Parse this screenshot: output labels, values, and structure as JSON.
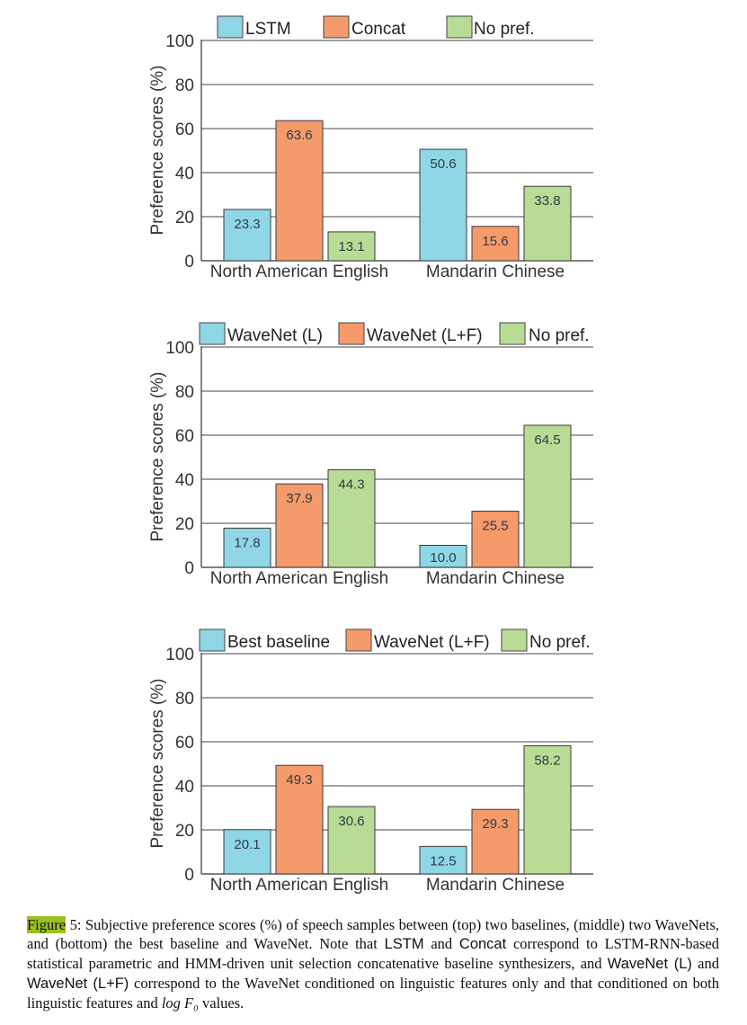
{
  "colors": {
    "cyan": "#8fd6e6",
    "orange": "#f59a6a",
    "green": "#b8dc95",
    "axis": "#333333",
    "grid": "#444444",
    "label": "#333333"
  },
  "chart_data": [
    {
      "type": "bar",
      "ylabel": "Preference scores (%)",
      "ylim": [
        0,
        100
      ],
      "yticks": [
        "0",
        "20",
        "40",
        "60",
        "80",
        "100"
      ],
      "categories": [
        "North American English",
        "Mandarin Chinese"
      ],
      "series": [
        {
          "name": "LSTM",
          "values": [
            23.3,
            50.6
          ],
          "value_labels": [
            "23.3",
            "50.6"
          ]
        },
        {
          "name": "Concat",
          "values": [
            63.6,
            15.6
          ],
          "value_labels": [
            "63.6",
            "15.6"
          ]
        },
        {
          "name": "No pref.",
          "values": [
            13.1,
            33.8
          ],
          "value_labels": [
            "13.1",
            "33.8"
          ]
        }
      ],
      "legend": "top"
    },
    {
      "type": "bar",
      "ylabel": "Preference scores (%)",
      "ylim": [
        0,
        100
      ],
      "yticks": [
        "0",
        "20",
        "40",
        "60",
        "80",
        "100"
      ],
      "categories": [
        "North American English",
        "Mandarin Chinese"
      ],
      "series": [
        {
          "name": "WaveNet (L)",
          "values": [
            17.8,
            10.0
          ],
          "value_labels": [
            "17.8",
            "10.0"
          ]
        },
        {
          "name": "WaveNet (L+F)",
          "values": [
            37.9,
            25.5
          ],
          "value_labels": [
            "37.9",
            "25.5"
          ]
        },
        {
          "name": "No pref.",
          "values": [
            44.3,
            64.5
          ],
          "value_labels": [
            "44.3",
            "64.5"
          ]
        }
      ],
      "legend": "top"
    },
    {
      "type": "bar",
      "ylabel": "Preference scores (%)",
      "ylim": [
        0,
        100
      ],
      "yticks": [
        "0",
        "20",
        "40",
        "60",
        "80",
        "100"
      ],
      "categories": [
        "North American English",
        "Mandarin Chinese"
      ],
      "series": [
        {
          "name": "Best baseline",
          "values": [
            20.1,
            12.5
          ],
          "value_labels": [
            "20.1",
            "12.5"
          ]
        },
        {
          "name": "WaveNet (L+F)",
          "values": [
            49.3,
            29.3
          ],
          "value_labels": [
            "49.3",
            "29.3"
          ]
        },
        {
          "name": "No pref.",
          "values": [
            30.6,
            58.2
          ],
          "value_labels": [
            "30.6",
            "58.2"
          ]
        }
      ],
      "legend": "top"
    }
  ],
  "caption": {
    "fig_word": "Figure",
    "fig_rest": " 5: Subjective preference scores (%) of speech samples between (top) two baselines, (middle) two WaveNets, and (bottom) the best baseline and WaveNet. Note that ",
    "lstm": "LSTM",
    "and1": " and ",
    "concat": "Concat",
    "mid": " correspond to LSTM-RNN-based statistical parametric and HMM-driven unit selection concatenative baseline synthesizers, and ",
    "wavenet_l": "WaveNet (L)",
    "and2": " and ",
    "wavenet_lf": "WaveNet (L+F)",
    "tail": " correspond to the WaveNet conditioned on linguistic features only and that conditioned on both linguistic features and ",
    "math": "log F₀",
    "end": " values."
  }
}
